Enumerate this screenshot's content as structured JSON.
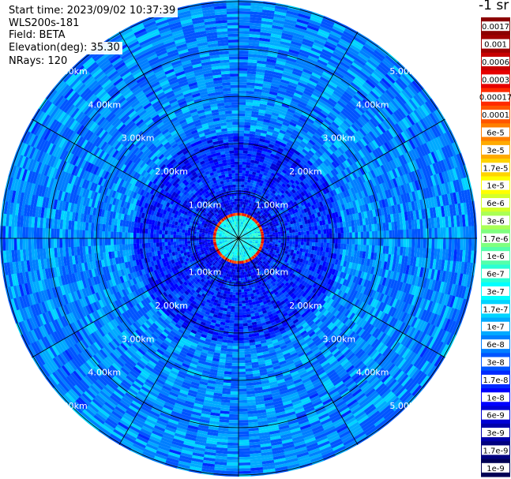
{
  "header": {
    "start_time": "Start time: 2023/09/02 10:37:39",
    "instrument": "WLS200s-181",
    "field": "Field: BETA",
    "elevation": "Elevation(deg): 35.30",
    "nrays": "NRays: 120"
  },
  "colorbar": {
    "unit_label": "-1 sr",
    "labels": [
      "0.0017",
      "0.001",
      "0.0006",
      "0.0003",
      "0.00017",
      "0.0001",
      "6e-5",
      "3e-5",
      "1.7e-5",
      "1e-5",
      "6e-6",
      "3e-6",
      "1.7e-6",
      "1e-6",
      "6e-7",
      "3e-7",
      "1.7e-7",
      "1e-7",
      "6e-8",
      "3e-8",
      "1.7e-8",
      "1e-8",
      "6e-9",
      "3e-9",
      "1.7e-9",
      "1e-9"
    ],
    "colors": [
      "#8b0000",
      "#a00000",
      "#c80000",
      "#e60000",
      "#ff2a00",
      "#ff5500",
      "#ff7f00",
      "#ffaa00",
      "#ffd400",
      "#ffff00",
      "#d4ff2a",
      "#aaff55",
      "#7fff7f",
      "#55ffaa",
      "#2affd4",
      "#00ffff",
      "#00d4ff",
      "#00aaff",
      "#007fff",
      "#0055ff",
      "#002aff",
      "#0000ff",
      "#0000d4",
      "#0000aa",
      "#00007f",
      "#000055"
    ]
  },
  "chart_data": {
    "type": "heatmap",
    "projection": "polar (PPI scan)",
    "field": "BETA",
    "unit": "sr^-1",
    "n_rays": 120,
    "elevation_deg": 35.3,
    "range_rings_km": [
      1.0,
      2.0,
      3.0,
      4.0,
      5.0
    ],
    "range_ring_labels": [
      "1.00km",
      "2.00km",
      "3.00km",
      "4.00km",
      "5.00km"
    ],
    "max_range_km": 5.7,
    "spokes_deg": [
      0,
      30,
      60,
      90,
      120,
      150,
      180,
      210,
      240,
      270,
      300,
      330
    ],
    "value_regions": [
      {
        "range_km": [
          0.0,
          0.45
        ],
        "approx_beta": 3e-07
      },
      {
        "range_km": [
          0.45,
          0.55
        ],
        "approx_beta": 0.00017
      },
      {
        "range_km": [
          0.55,
          0.85
        ],
        "approx_beta": 1e-08
      },
      {
        "range_km": [
          0.85,
          2.2
        ],
        "approx_beta": 1.7e-08
      },
      {
        "range_km": [
          2.2,
          5.7
        ],
        "approx_beta": 6e-08
      }
    ]
  }
}
